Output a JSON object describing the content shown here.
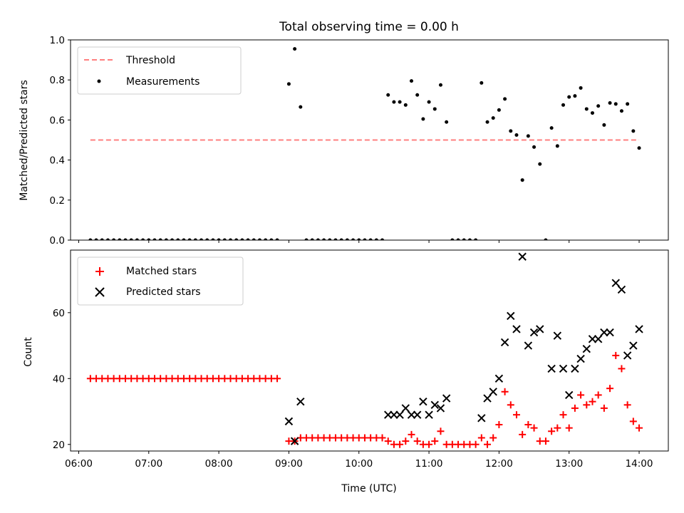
{
  "chart_data": [
    {
      "panel": "top",
      "type": "scatter",
      "title": "Total observing time = 0.00 h",
      "xlabel": "",
      "ylabel": "Matched/Predicted stars",
      "ylim": [
        0.0,
        1.0
      ],
      "yticks": [
        "0.0",
        "0.2",
        "0.4",
        "0.6",
        "0.8",
        "1.0"
      ],
      "xlim": [
        "05:53",
        "14:25"
      ],
      "xticks": [
        "06:00",
        "07:00",
        "08:00",
        "09:00",
        "10:00",
        "11:00",
        "12:00",
        "13:00",
        "14:00"
      ],
      "legend": {
        "position": "top-left",
        "entries": [
          "Threshold",
          "Measurements"
        ]
      },
      "colors": {
        "threshold": "#ff7f7f",
        "measurements": "#000000"
      },
      "series": [
        {
          "name": "Threshold",
          "style": "dashed-line",
          "points": [
            [
              "06:10",
              0.5
            ],
            [
              "14:00",
              0.5
            ]
          ]
        },
        {
          "name": "Measurements",
          "style": "dot",
          "points": [
            [
              "06:10",
              0
            ],
            [
              "06:15",
              0
            ],
            [
              "06:20",
              0
            ],
            [
              "06:25",
              0
            ],
            [
              "06:30",
              0
            ],
            [
              "06:35",
              0
            ],
            [
              "06:40",
              0
            ],
            [
              "06:45",
              0
            ],
            [
              "06:50",
              0
            ],
            [
              "06:55",
              0
            ],
            [
              "07:00",
              0
            ],
            [
              "07:05",
              0
            ],
            [
              "07:10",
              0
            ],
            [
              "07:15",
              0
            ],
            [
              "07:20",
              0
            ],
            [
              "07:25",
              0
            ],
            [
              "07:30",
              0
            ],
            [
              "07:35",
              0
            ],
            [
              "07:40",
              0
            ],
            [
              "07:45",
              0
            ],
            [
              "07:50",
              0
            ],
            [
              "07:55",
              0
            ],
            [
              "08:00",
              0
            ],
            [
              "08:05",
              0
            ],
            [
              "08:10",
              0
            ],
            [
              "08:15",
              0
            ],
            [
              "08:20",
              0
            ],
            [
              "08:25",
              0
            ],
            [
              "08:30",
              0
            ],
            [
              "08:35",
              0
            ],
            [
              "08:40",
              0
            ],
            [
              "08:45",
              0
            ],
            [
              "08:50",
              0
            ],
            [
              "09:00",
              0.78
            ],
            [
              "09:05",
              0.955
            ],
            [
              "09:10",
              0.665
            ],
            [
              "09:15",
              0
            ],
            [
              "09:20",
              0
            ],
            [
              "09:25",
              0
            ],
            [
              "09:30",
              0
            ],
            [
              "09:35",
              0
            ],
            [
              "09:40",
              0
            ],
            [
              "09:45",
              0
            ],
            [
              "09:50",
              0
            ],
            [
              "09:55",
              0
            ],
            [
              "10:00",
              0
            ],
            [
              "10:05",
              0
            ],
            [
              "10:10",
              0
            ],
            [
              "10:15",
              0
            ],
            [
              "10:20",
              0
            ],
            [
              "10:25",
              0.725
            ],
            [
              "10:30",
              0.69
            ],
            [
              "10:35",
              0.69
            ],
            [
              "10:40",
              0.675
            ],
            [
              "10:45",
              0.795
            ],
            [
              "10:50",
              0.725
            ],
            [
              "10:55",
              0.605
            ],
            [
              "11:00",
              0.69
            ],
            [
              "11:05",
              0.655
            ],
            [
              "11:10",
              0.775
            ],
            [
              "11:15",
              0.59
            ],
            [
              "11:20",
              0
            ],
            [
              "11:25",
              0
            ],
            [
              "11:30",
              0
            ],
            [
              "11:35",
              0
            ],
            [
              "11:40",
              0
            ],
            [
              "11:45",
              0.785
            ],
            [
              "11:50",
              0.59
            ],
            [
              "11:55",
              0.61
            ],
            [
              "12:00",
              0.65
            ],
            [
              "12:05",
              0.705
            ],
            [
              "12:10",
              0.545
            ],
            [
              "12:15",
              0.525
            ],
            [
              "12:20",
              0.3
            ],
            [
              "12:25",
              0.52
            ],
            [
              "12:30",
              0.465
            ],
            [
              "12:35",
              0.38
            ],
            [
              "12:40",
              0
            ],
            [
              "12:45",
              0.56
            ],
            [
              "12:50",
              0.47
            ],
            [
              "12:55",
              0.675
            ],
            [
              "13:00",
              0.715
            ],
            [
              "13:05",
              0.72
            ],
            [
              "13:10",
              0.76
            ],
            [
              "13:15",
              0.655
            ],
            [
              "13:20",
              0.635
            ],
            [
              "13:25",
              0.67
            ],
            [
              "13:30",
              0.575
            ],
            [
              "13:35",
              0.685
            ],
            [
              "13:40",
              0.68
            ],
            [
              "13:45",
              0.645
            ],
            [
              "13:50",
              0.68
            ],
            [
              "13:55",
              0.545
            ],
            [
              "14:00",
              0.46
            ]
          ]
        }
      ]
    },
    {
      "panel": "bottom",
      "type": "scatter",
      "title": "",
      "xlabel": "Time (UTC)",
      "ylabel": "Count",
      "ylim": [
        18.0,
        79.0
      ],
      "yticks": [
        "20",
        "40",
        "60"
      ],
      "xlim": [
        "05:53",
        "14:25"
      ],
      "xticks": [
        "06:00",
        "07:00",
        "08:00",
        "09:00",
        "10:00",
        "11:00",
        "12:00",
        "13:00",
        "14:00"
      ],
      "legend": {
        "position": "top-left",
        "entries": [
          "Matched stars",
          "Predicted stars"
        ]
      },
      "colors": {
        "matched": "#ff0000",
        "predicted": "#000000"
      },
      "series": [
        {
          "name": "Matched stars",
          "marker": "plus",
          "points": [
            [
              "06:10",
              40
            ],
            [
              "06:15",
              40
            ],
            [
              "06:20",
              40
            ],
            [
              "06:25",
              40
            ],
            [
              "06:30",
              40
            ],
            [
              "06:35",
              40
            ],
            [
              "06:40",
              40
            ],
            [
              "06:45",
              40
            ],
            [
              "06:50",
              40
            ],
            [
              "06:55",
              40
            ],
            [
              "07:00",
              40
            ],
            [
              "07:05",
              40
            ],
            [
              "07:10",
              40
            ],
            [
              "07:15",
              40
            ],
            [
              "07:20",
              40
            ],
            [
              "07:25",
              40
            ],
            [
              "07:30",
              40
            ],
            [
              "07:35",
              40
            ],
            [
              "07:40",
              40
            ],
            [
              "07:45",
              40
            ],
            [
              "07:50",
              40
            ],
            [
              "07:55",
              40
            ],
            [
              "08:00",
              40
            ],
            [
              "08:05",
              40
            ],
            [
              "08:10",
              40
            ],
            [
              "08:15",
              40
            ],
            [
              "08:20",
              40
            ],
            [
              "08:25",
              40
            ],
            [
              "08:30",
              40
            ],
            [
              "08:35",
              40
            ],
            [
              "08:40",
              40
            ],
            [
              "08:45",
              40
            ],
            [
              "08:50",
              40
            ],
            [
              "09:00",
              21
            ],
            [
              "09:05",
              21
            ],
            [
              "09:10",
              22
            ],
            [
              "09:15",
              22
            ],
            [
              "09:20",
              22
            ],
            [
              "09:25",
              22
            ],
            [
              "09:30",
              22
            ],
            [
              "09:35",
              22
            ],
            [
              "09:40",
              22
            ],
            [
              "09:45",
              22
            ],
            [
              "09:50",
              22
            ],
            [
              "09:55",
              22
            ],
            [
              "10:00",
              22
            ],
            [
              "10:05",
              22
            ],
            [
              "10:10",
              22
            ],
            [
              "10:15",
              22
            ],
            [
              "10:20",
              22
            ],
            [
              "10:25",
              21
            ],
            [
              "10:30",
              20
            ],
            [
              "10:35",
              20
            ],
            [
              "10:40",
              21
            ],
            [
              "10:45",
              23
            ],
            [
              "10:50",
              21
            ],
            [
              "10:55",
              20
            ],
            [
              "11:00",
              20
            ],
            [
              "11:05",
              21
            ],
            [
              "11:10",
              24
            ],
            [
              "11:15",
              20
            ],
            [
              "11:20",
              20
            ],
            [
              "11:25",
              20
            ],
            [
              "11:30",
              20
            ],
            [
              "11:35",
              20
            ],
            [
              "11:40",
              20
            ],
            [
              "11:45",
              22
            ],
            [
              "11:50",
              20
            ],
            [
              "11:55",
              22
            ],
            [
              "12:00",
              26
            ],
            [
              "12:05",
              36
            ],
            [
              "12:10",
              32
            ],
            [
              "12:15",
              29
            ],
            [
              "12:20",
              23
            ],
            [
              "12:25",
              26
            ],
            [
              "12:30",
              25
            ],
            [
              "12:35",
              21
            ],
            [
              "12:40",
              21
            ],
            [
              "12:45",
              24
            ],
            [
              "12:50",
              25
            ],
            [
              "12:55",
              29
            ],
            [
              "13:00",
              25
            ],
            [
              "13:05",
              31
            ],
            [
              "13:10",
              35
            ],
            [
              "13:15",
              32
            ],
            [
              "13:20",
              33
            ],
            [
              "13:25",
              35
            ],
            [
              "13:30",
              31
            ],
            [
              "13:35",
              37
            ],
            [
              "13:40",
              47
            ],
            [
              "13:45",
              43
            ],
            [
              "13:50",
              32
            ],
            [
              "13:55",
              27
            ],
            [
              "14:00",
              25
            ]
          ]
        },
        {
          "name": "Predicted stars",
          "marker": "x",
          "points": [
            [
              "09:00",
              27
            ],
            [
              "09:05",
              21
            ],
            [
              "09:10",
              33
            ],
            [
              "10:25",
              29
            ],
            [
              "10:30",
              29
            ],
            [
              "10:35",
              29
            ],
            [
              "10:40",
              31
            ],
            [
              "10:45",
              29
            ],
            [
              "10:50",
              29
            ],
            [
              "10:55",
              33
            ],
            [
              "11:00",
              29
            ],
            [
              "11:05",
              32
            ],
            [
              "11:10",
              31
            ],
            [
              "11:15",
              34
            ],
            [
              "11:45",
              28
            ],
            [
              "11:50",
              34
            ],
            [
              "11:55",
              36
            ],
            [
              "12:00",
              40
            ],
            [
              "12:05",
              51
            ],
            [
              "12:10",
              59
            ],
            [
              "12:15",
              55
            ],
            [
              "12:20",
              77
            ],
            [
              "12:25",
              50
            ],
            [
              "12:30",
              54
            ],
            [
              "12:35",
              55
            ],
            [
              "12:45",
              43
            ],
            [
              "12:50",
              53
            ],
            [
              "12:55",
              43
            ],
            [
              "13:00",
              35
            ],
            [
              "13:05",
              43
            ],
            [
              "13:10",
              46
            ],
            [
              "13:15",
              49
            ],
            [
              "13:20",
              52
            ],
            [
              "13:25",
              52
            ],
            [
              "13:30",
              54
            ],
            [
              "13:35",
              54
            ],
            [
              "13:40",
              69
            ],
            [
              "13:45",
              67
            ],
            [
              "13:50",
              47
            ],
            [
              "13:55",
              50
            ],
            [
              "14:00",
              55
            ]
          ]
        }
      ]
    }
  ]
}
